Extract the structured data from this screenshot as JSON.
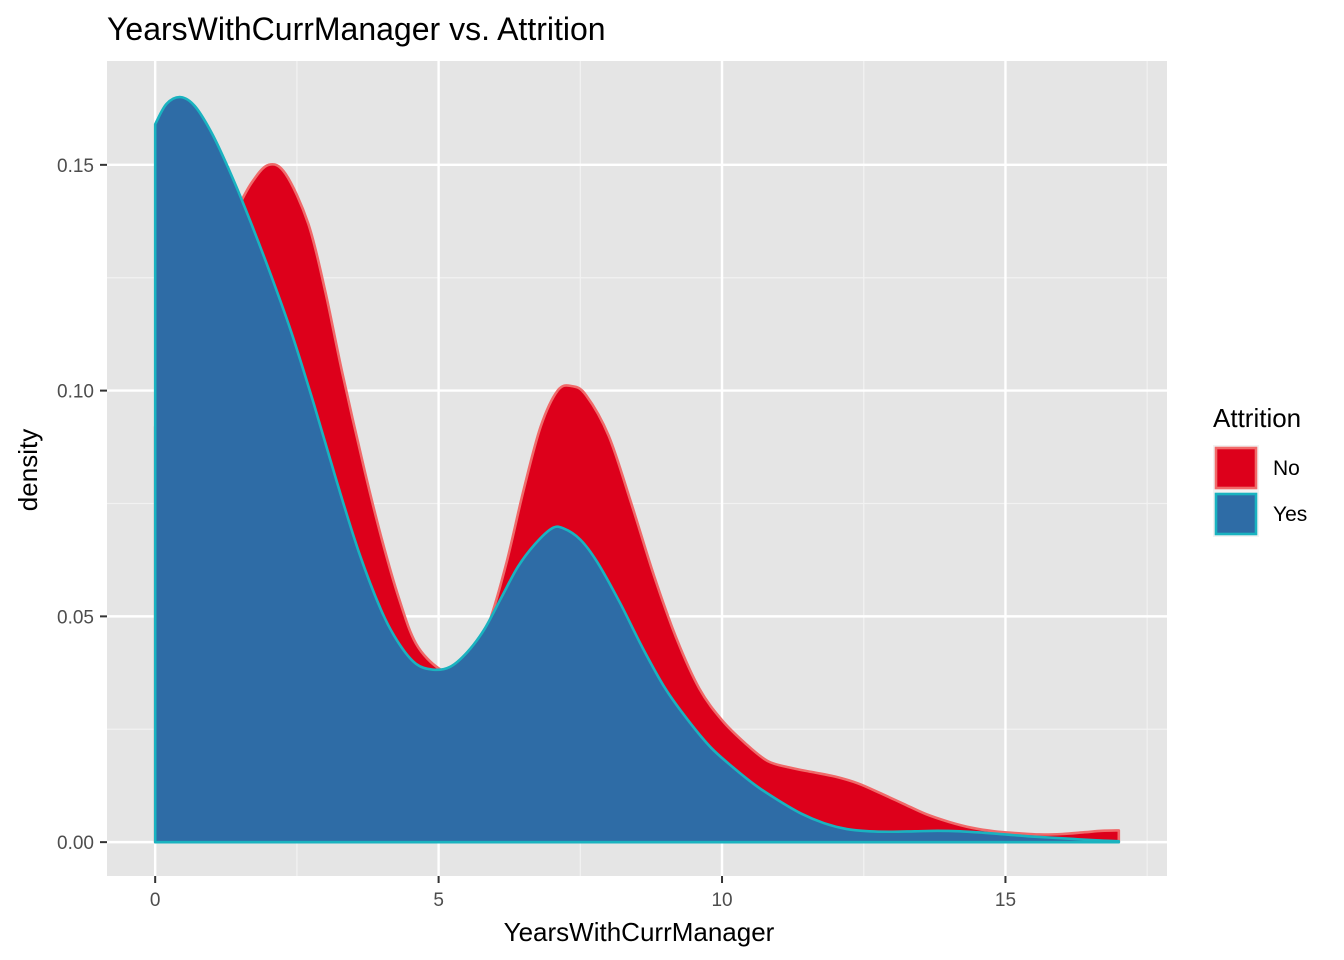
{
  "chart_data": {
    "type": "area",
    "title": "YearsWithCurrManager vs. Attrition",
    "xlabel": "YearsWithCurrManager",
    "ylabel": "density",
    "xlim": [
      -0.85,
      17.85
    ],
    "ylim": [
      -0.0075,
      0.173
    ],
    "x_ticks": [
      0,
      5,
      10,
      15
    ],
    "x_tick_labels": [
      "0",
      "5",
      "10",
      "15"
    ],
    "y_ticks": [
      0.0,
      0.05,
      0.1,
      0.15
    ],
    "y_tick_labels": [
      "0.00",
      "0.05",
      "0.10",
      "0.15"
    ],
    "grid": true,
    "legend": {
      "title": "Attrition",
      "position": "right"
    },
    "series": [
      {
        "name": "No",
        "fill": "#dd001b",
        "stroke": "#f06a6a",
        "points": [
          [
            0,
            0.092
          ],
          [
            0.3,
            0.104
          ],
          [
            0.6,
            0.116
          ],
          [
            1.0,
            0.128
          ],
          [
            1.4,
            0.139
          ],
          [
            1.7,
            0.146
          ],
          [
            2.0,
            0.15
          ],
          [
            2.3,
            0.148
          ],
          [
            2.7,
            0.137
          ],
          [
            3.0,
            0.122
          ],
          [
            3.3,
            0.104
          ],
          [
            3.7,
            0.082
          ],
          [
            4.0,
            0.067
          ],
          [
            4.3,
            0.054
          ],
          [
            4.6,
            0.044
          ],
          [
            5.0,
            0.0385
          ],
          [
            5.3,
            0.038
          ],
          [
            5.6,
            0.041
          ],
          [
            5.9,
            0.049
          ],
          [
            6.2,
            0.062
          ],
          [
            6.5,
            0.078
          ],
          [
            6.8,
            0.092
          ],
          [
            7.1,
            0.1
          ],
          [
            7.35,
            0.101
          ],
          [
            7.6,
            0.099
          ],
          [
            8.0,
            0.09
          ],
          [
            8.4,
            0.075
          ],
          [
            8.8,
            0.059
          ],
          [
            9.2,
            0.045
          ],
          [
            9.6,
            0.034
          ],
          [
            10.0,
            0.027
          ],
          [
            10.4,
            0.022
          ],
          [
            10.8,
            0.018
          ],
          [
            11.2,
            0.0165
          ],
          [
            11.6,
            0.0155
          ],
          [
            12.0,
            0.0145
          ],
          [
            12.4,
            0.013
          ],
          [
            12.8,
            0.0108
          ],
          [
            13.2,
            0.0085
          ],
          [
            13.6,
            0.0062
          ],
          [
            14.0,
            0.0045
          ],
          [
            14.4,
            0.0032
          ],
          [
            14.8,
            0.0024
          ],
          [
            15.2,
            0.002
          ],
          [
            15.6,
            0.0017
          ],
          [
            16.0,
            0.0018
          ],
          [
            16.4,
            0.0022
          ],
          [
            16.7,
            0.0025
          ],
          [
            17.0,
            0.0026
          ]
        ]
      },
      {
        "name": "Yes",
        "fill": "#2e6ca6",
        "stroke": "#1ab3c0",
        "points": [
          [
            0,
            0.159
          ],
          [
            0.2,
            0.1635
          ],
          [
            0.45,
            0.165
          ],
          [
            0.7,
            0.163
          ],
          [
            1.0,
            0.157
          ],
          [
            1.3,
            0.149
          ],
          [
            1.6,
            0.14
          ],
          [
            2.0,
            0.127
          ],
          [
            2.4,
            0.113
          ],
          [
            2.8,
            0.097
          ],
          [
            3.2,
            0.08
          ],
          [
            3.6,
            0.064
          ],
          [
            4.0,
            0.051
          ],
          [
            4.3,
            0.044
          ],
          [
            4.6,
            0.0395
          ],
          [
            4.9,
            0.0382
          ],
          [
            5.2,
            0.0388
          ],
          [
            5.5,
            0.042
          ],
          [
            5.8,
            0.047
          ],
          [
            6.1,
            0.054
          ],
          [
            6.4,
            0.061
          ],
          [
            6.7,
            0.066
          ],
          [
            7.0,
            0.0695
          ],
          [
            7.2,
            0.0695
          ],
          [
            7.5,
            0.067
          ],
          [
            7.8,
            0.062
          ],
          [
            8.2,
            0.053
          ],
          [
            8.6,
            0.043
          ],
          [
            9.0,
            0.034
          ],
          [
            9.4,
            0.027
          ],
          [
            9.8,
            0.021
          ],
          [
            10.2,
            0.0165
          ],
          [
            10.6,
            0.0125
          ],
          [
            11.0,
            0.0092
          ],
          [
            11.4,
            0.0063
          ],
          [
            11.8,
            0.0042
          ],
          [
            12.2,
            0.0029
          ],
          [
            12.6,
            0.0024
          ],
          [
            13.0,
            0.0023
          ],
          [
            13.4,
            0.0024
          ],
          [
            13.8,
            0.0025
          ],
          [
            14.2,
            0.0024
          ],
          [
            14.6,
            0.0021
          ],
          [
            15.0,
            0.0017
          ],
          [
            15.4,
            0.0013
          ],
          [
            15.8,
            0.001
          ],
          [
            16.2,
            0.0007
          ],
          [
            16.6,
            0.0004
          ],
          [
            17.0,
            0.0002
          ]
        ]
      }
    ]
  }
}
